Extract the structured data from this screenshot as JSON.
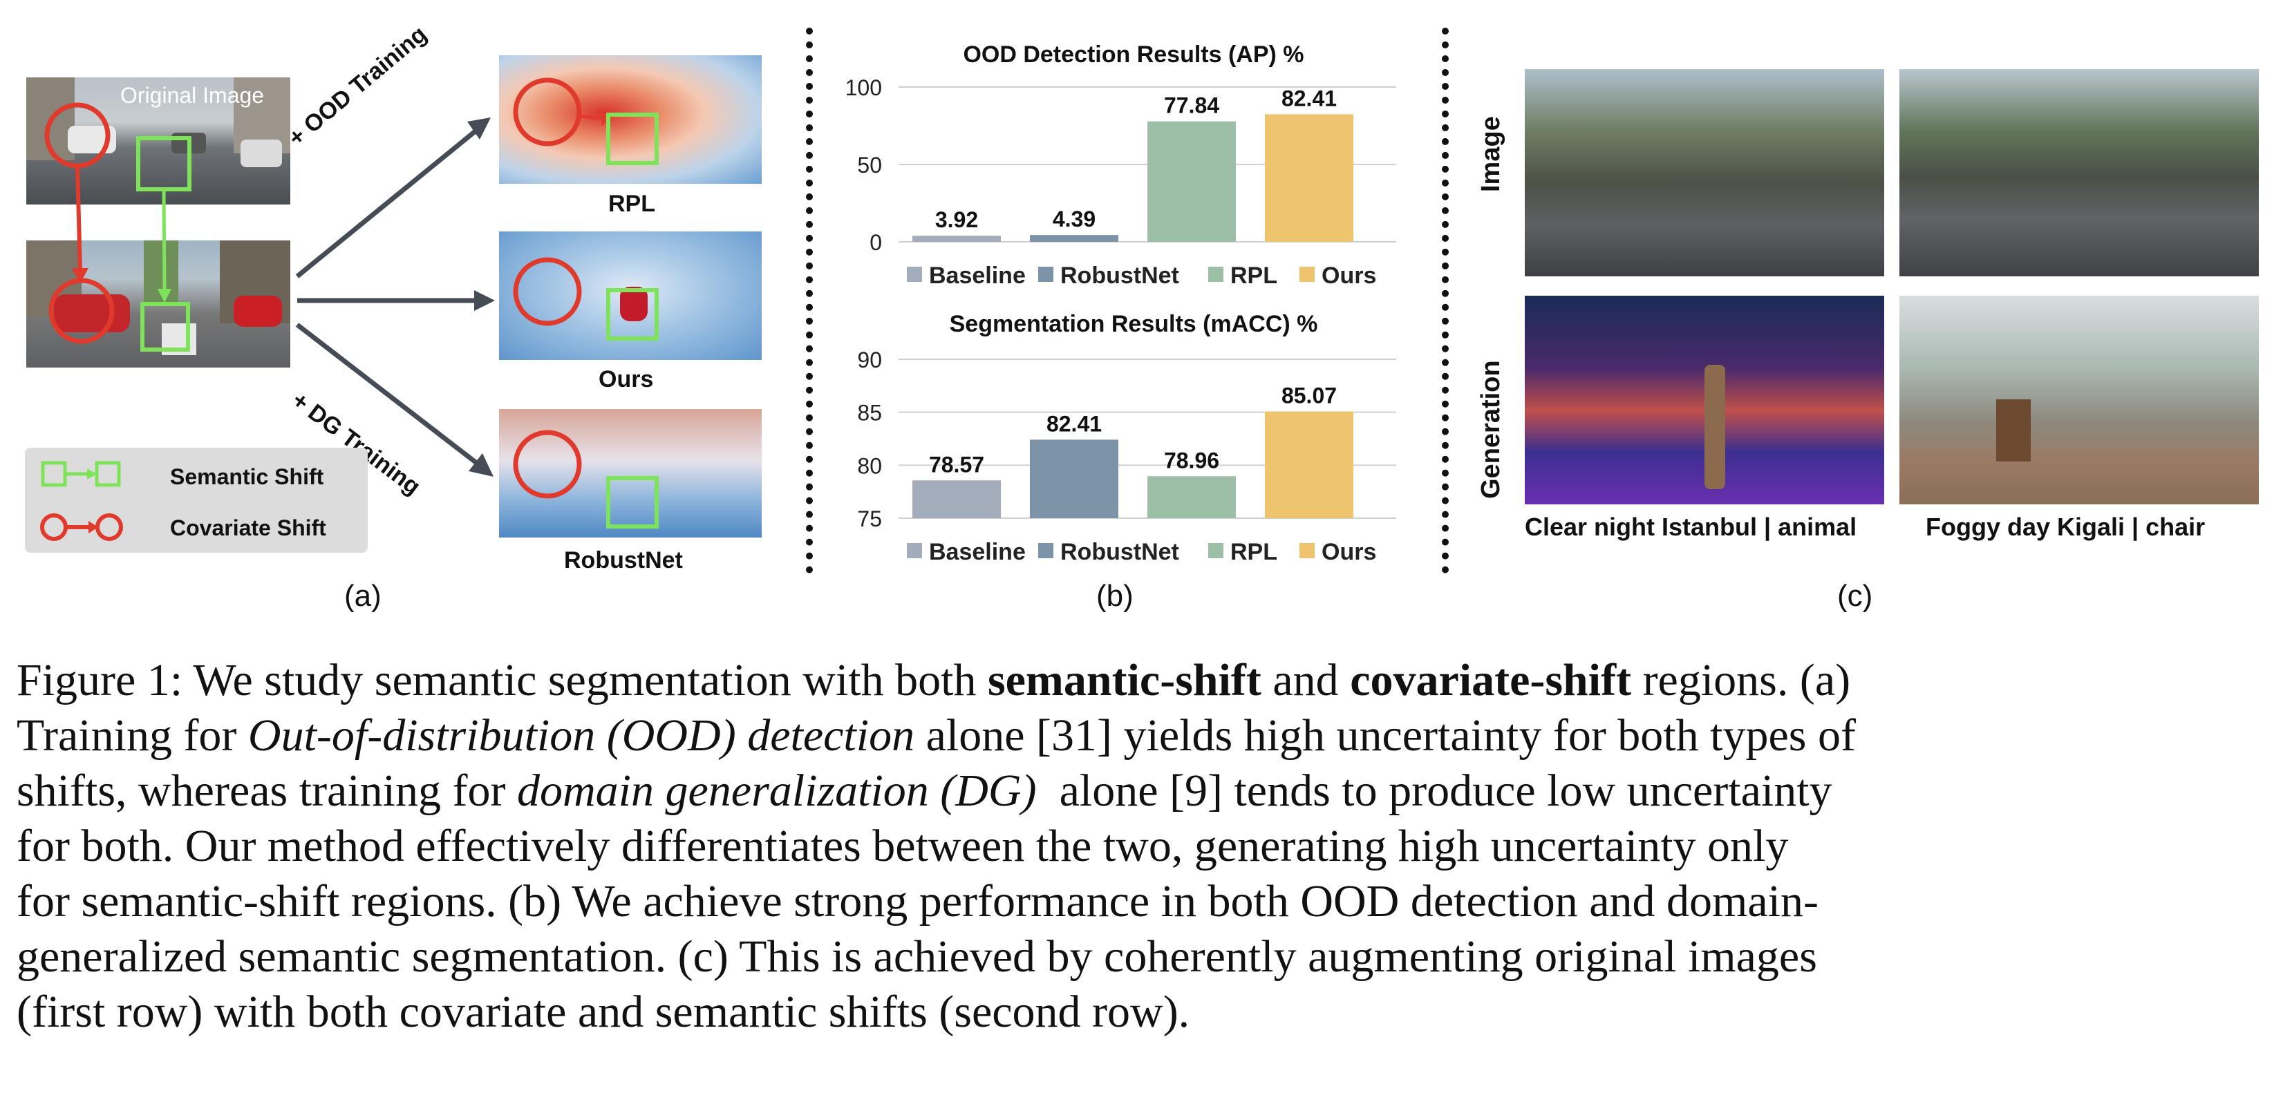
{
  "panel_a": {
    "original_image_label": "Original Image",
    "arrow_top": "+ OOD Training",
    "arrow_bottom": "+ DG Training",
    "method_labels": [
      "RPL",
      "Ours",
      "RobustNet"
    ],
    "legend": {
      "semantic": "Semantic Shift",
      "covariate": "Covariate Shift"
    },
    "letter": "(a)"
  },
  "panel_b": {
    "letter": "(b)"
  },
  "panel_c": {
    "row_labels": [
      "Image",
      "Generation"
    ],
    "captions": [
      "Clear night Istanbul | animal",
      "Foggy day Kigali | chair"
    ],
    "letter": "(c)"
  },
  "colors": {
    "baseline": "#a3acbb",
    "robustnet": "#7c93a8",
    "rpl": "#9dbfa8",
    "ours": "#eec46f",
    "semantic": "#7fe35a",
    "covariate": "#e03a2c"
  },
  "chart_data": [
    {
      "type": "bar",
      "title": "OOD Detection Results (AP) %",
      "categories": [
        "Baseline",
        "RobustNet",
        "RPL",
        "Ours"
      ],
      "values": [
        3.92,
        4.39,
        77.84,
        82.41
      ],
      "ylim": [
        0,
        100
      ],
      "yticks": [
        0,
        50,
        100
      ],
      "legend": [
        "Baseline",
        "RobustNet",
        "RPL",
        "Ours"
      ]
    },
    {
      "type": "bar",
      "title": "Segmentation Results (mACC) %",
      "categories": [
        "Baseline",
        "RobustNet",
        "RPL",
        "Ours"
      ],
      "values": [
        78.57,
        82.41,
        78.96,
        85.07
      ],
      "ylim": [
        75,
        90
      ],
      "yticks": [
        75,
        80,
        85,
        90
      ],
      "legend": [
        "Baseline",
        "RobustNet",
        "RPL",
        "Ours"
      ]
    }
  ],
  "caption": {
    "l1_a": "Figure 1: We study semantic segmentation with both ",
    "l1_b": "semantic-shift",
    "l1_c": " and ",
    "l1_d": "covariate-shift",
    "l1_e": " regions. (a)",
    "l2_a": "Training for ",
    "l2_b": "Out-of-distribution (OOD) detection",
    "l2_c": " alone [31] yields high uncertainty for both types of",
    "l3_a": "shifts, whereas training for ",
    "l3_b": "domain generalization (DG)",
    "l3_c": "  alone [9] tends to produce low uncertainty",
    "l4": "for both. Our method effectively differentiates between the two, generating high uncertainty only",
    "l5": "for semantic-shift regions. (b) We achieve strong performance in both OOD detection and domain-",
    "l6": "generalized semantic segmentation. (c) This is achieved by coherently augmenting original images",
    "l7": "(first row) with both covariate and semantic shifts (second row)."
  }
}
